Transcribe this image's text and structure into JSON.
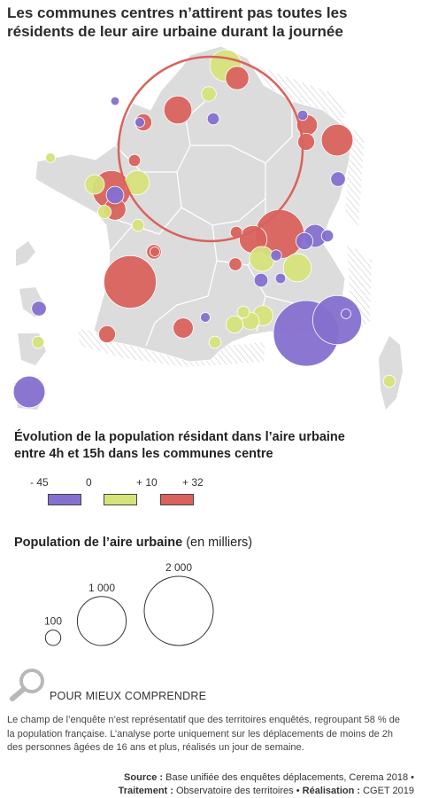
{
  "title": "Les communes centres n’attirent pas toutes les résidents de leur aire urbaine durant la journée",
  "colors": {
    "decrease": "#8570cf",
    "stable": "#d6e27a",
    "increase": "#d9625c",
    "land": "#dcdcdc",
    "land_border": "#ffffff",
    "highlight_ring": "#d9625c"
  },
  "legend_color": {
    "title_line1": "Évolution de la population résidant dans l’aire urbaine",
    "title_line2": "entre 4h et 15h dans les communes centre",
    "labels": [
      "- 45",
      "0",
      "+ 10",
      "+ 32"
    ]
  },
  "legend_size": {
    "title": "Population de l’aire urbaine",
    "unit": "(en milliers)",
    "labels": [
      "100",
      "1 000",
      "2 000"
    ],
    "values": [
      100,
      1000,
      2000
    ]
  },
  "note": {
    "heading": "POUR MIEUX COMPRENDRE",
    "icon": "magnifier-icon",
    "line1": "Le champ de l’enquête n’est représentatif que des territoires enquêtés, regroupant 58 % de",
    "line2": "la population française. L’analyse porte uniquement sur les déplacements de moins de 2h",
    "line3": "des personnes âgées de 16 ans et plus, réalisés un jour de semaine."
  },
  "source": {
    "source_label": "Source :",
    "source_text": "Base unifiée des enquêtes déplacements, Cerema 2018 •",
    "treatment_label": "Traitement :",
    "treatment_text": "Observatoire des territoires •",
    "production_label": "Réalisation :",
    "production_text": "CGET 2019"
  },
  "map_symbols": [
    {
      "cat": "stable",
      "pop": 420
    },
    {
      "cat": "increase",
      "pop": 230
    },
    {
      "cat": "stable",
      "pop": 90
    },
    {
      "cat": "increase",
      "pop": 330
    },
    {
      "cat": "increase",
      "pop": 120
    },
    {
      "cat": "decrease",
      "pop": 30
    },
    {
      "cat": "decrease",
      "pop": 40
    },
    {
      "cat": "decrease",
      "pop": 60
    },
    {
      "cat": "increase",
      "pop": 180
    },
    {
      "cat": "increase",
      "pop": 120
    },
    {
      "cat": "decrease",
      "pop": 45
    },
    {
      "cat": "increase",
      "pop": 420
    },
    {
      "cat": "stable",
      "pop": 40
    },
    {
      "cat": "increase",
      "pop": 60
    },
    {
      "cat": "stable",
      "pop": 250
    },
    {
      "cat": "stable",
      "pop": 160
    },
    {
      "cat": "increase",
      "pop": 620
    },
    {
      "cat": "decrease",
      "pop": 90
    },
    {
      "cat": "decrease",
      "pop": 130
    },
    {
      "cat": "stable",
      "pop": 75
    },
    {
      "cat": "increase",
      "pop": 200
    },
    {
      "cat": "stable",
      "pop": 60
    },
    {
      "cat": "increase",
      "pop": 40
    },
    {
      "cat": "increase",
      "pop": 60
    },
    {
      "cat": "increase",
      "pop": 1000
    },
    {
      "cat": "increase",
      "pop": 320
    },
    {
      "cat": "stable",
      "pop": 260
    },
    {
      "cat": "stable",
      "pop": 330
    },
    {
      "cat": "increase",
      "pop": 70
    },
    {
      "cat": "decrease",
      "pop": 80
    },
    {
      "cat": "decrease",
      "pop": 45
    },
    {
      "cat": "decrease",
      "pop": 220
    },
    {
      "cat": "decrease",
      "pop": 120
    },
    {
      "cat": "decrease",
      "pop": 60
    },
    {
      "cat": "increase",
      "pop": 1150
    },
    {
      "cat": "increase",
      "pop": 90
    },
    {
      "cat": "decrease",
      "pop": 50
    },
    {
      "cat": "stable",
      "pop": 130
    },
    {
      "cat": "stable",
      "pop": 170
    },
    {
      "cat": "stable",
      "pop": 120
    },
    {
      "cat": "stable",
      "pop": 60
    },
    {
      "cat": "decrease",
      "pop": 1800
    },
    {
      "cat": "decrease",
      "pop": 1000
    },
    {
      "cat": "increase",
      "pop": 170
    },
    {
      "cat": "decrease",
      "pop": 40
    },
    {
      "cat": "decrease",
      "pop": 40
    },
    {
      "cat": "stable",
      "pop": 60
    },
    {
      "cat": "decrease",
      "pop": 420
    },
    {
      "cat": "stable",
      "pop": 60
    },
    {
      "cat": "stable",
      "pop": 60
    },
    {
      "cat": "decrease",
      "pop": 90
    },
    {
      "cat": "increase",
      "pop": 120
    }
  ]
}
